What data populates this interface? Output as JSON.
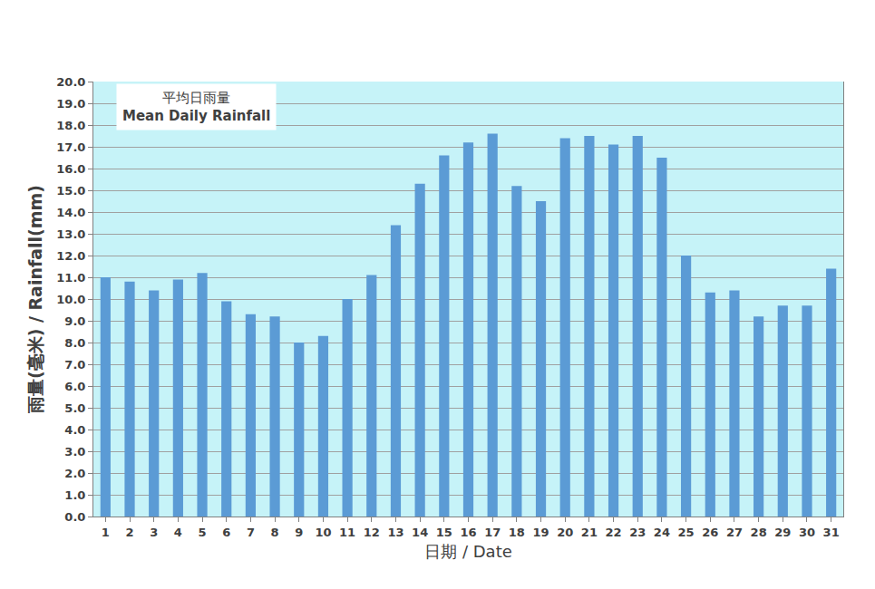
{
  "chart_data": {
    "type": "bar",
    "title": "平均日雨量",
    "subtitle": "Mean Daily Rainfall",
    "x_label": "日期 / Date",
    "y_label": "雨量(毫米) / Rainfall(mm)",
    "categories": [
      "1",
      "2",
      "3",
      "4",
      "5",
      "6",
      "7",
      "8",
      "9",
      "10",
      "11",
      "12",
      "13",
      "14",
      "15",
      "16",
      "17",
      "18",
      "19",
      "20",
      "21",
      "22",
      "23",
      "24",
      "25",
      "26",
      "27",
      "28",
      "29",
      "30",
      "31"
    ],
    "values": [
      11.0,
      10.8,
      10.4,
      10.9,
      11.2,
      9.9,
      9.3,
      9.2,
      8.0,
      8.3,
      10.0,
      11.1,
      13.4,
      15.3,
      16.6,
      17.2,
      17.6,
      15.2,
      14.5,
      17.4,
      17.5,
      17.1,
      17.5,
      16.5,
      12.0,
      10.3,
      10.4,
      9.2,
      9.7,
      9.7,
      11.4
    ],
    "color": "#5b9bd5",
    "ylim": [
      0,
      20
    ],
    "yticks": [
      {
        "value": 0,
        "label": "0.0"
      },
      {
        "value": 1,
        "label": "1.0"
      },
      {
        "value": 2,
        "label": "2.0"
      },
      {
        "value": 3,
        "label": "3.0"
      },
      {
        "value": 4,
        "label": "4.0"
      },
      {
        "value": 5,
        "label": "5.0"
      },
      {
        "value": 6,
        "label": "6.0"
      },
      {
        "value": 7,
        "label": "7.0"
      },
      {
        "value": 8,
        "label": "8.0"
      },
      {
        "value": 9,
        "label": "9.0"
      },
      {
        "value": 10,
        "label": "10.0"
      },
      {
        "value": 11,
        "label": "11.0"
      },
      {
        "value": 12,
        "label": "12.0"
      },
      {
        "value": 13,
        "label": "13.0"
      },
      {
        "value": 14,
        "label": "14.0"
      },
      {
        "value": 15,
        "label": "15.0"
      },
      {
        "value": 16,
        "label": "16.0"
      },
      {
        "value": 17,
        "label": "17.0"
      },
      {
        "value": 18,
        "label": "18.0"
      },
      {
        "value": 19,
        "label": "19.0"
      },
      {
        "value": 20,
        "label": "20.0"
      }
    ],
    "grid": true
  }
}
